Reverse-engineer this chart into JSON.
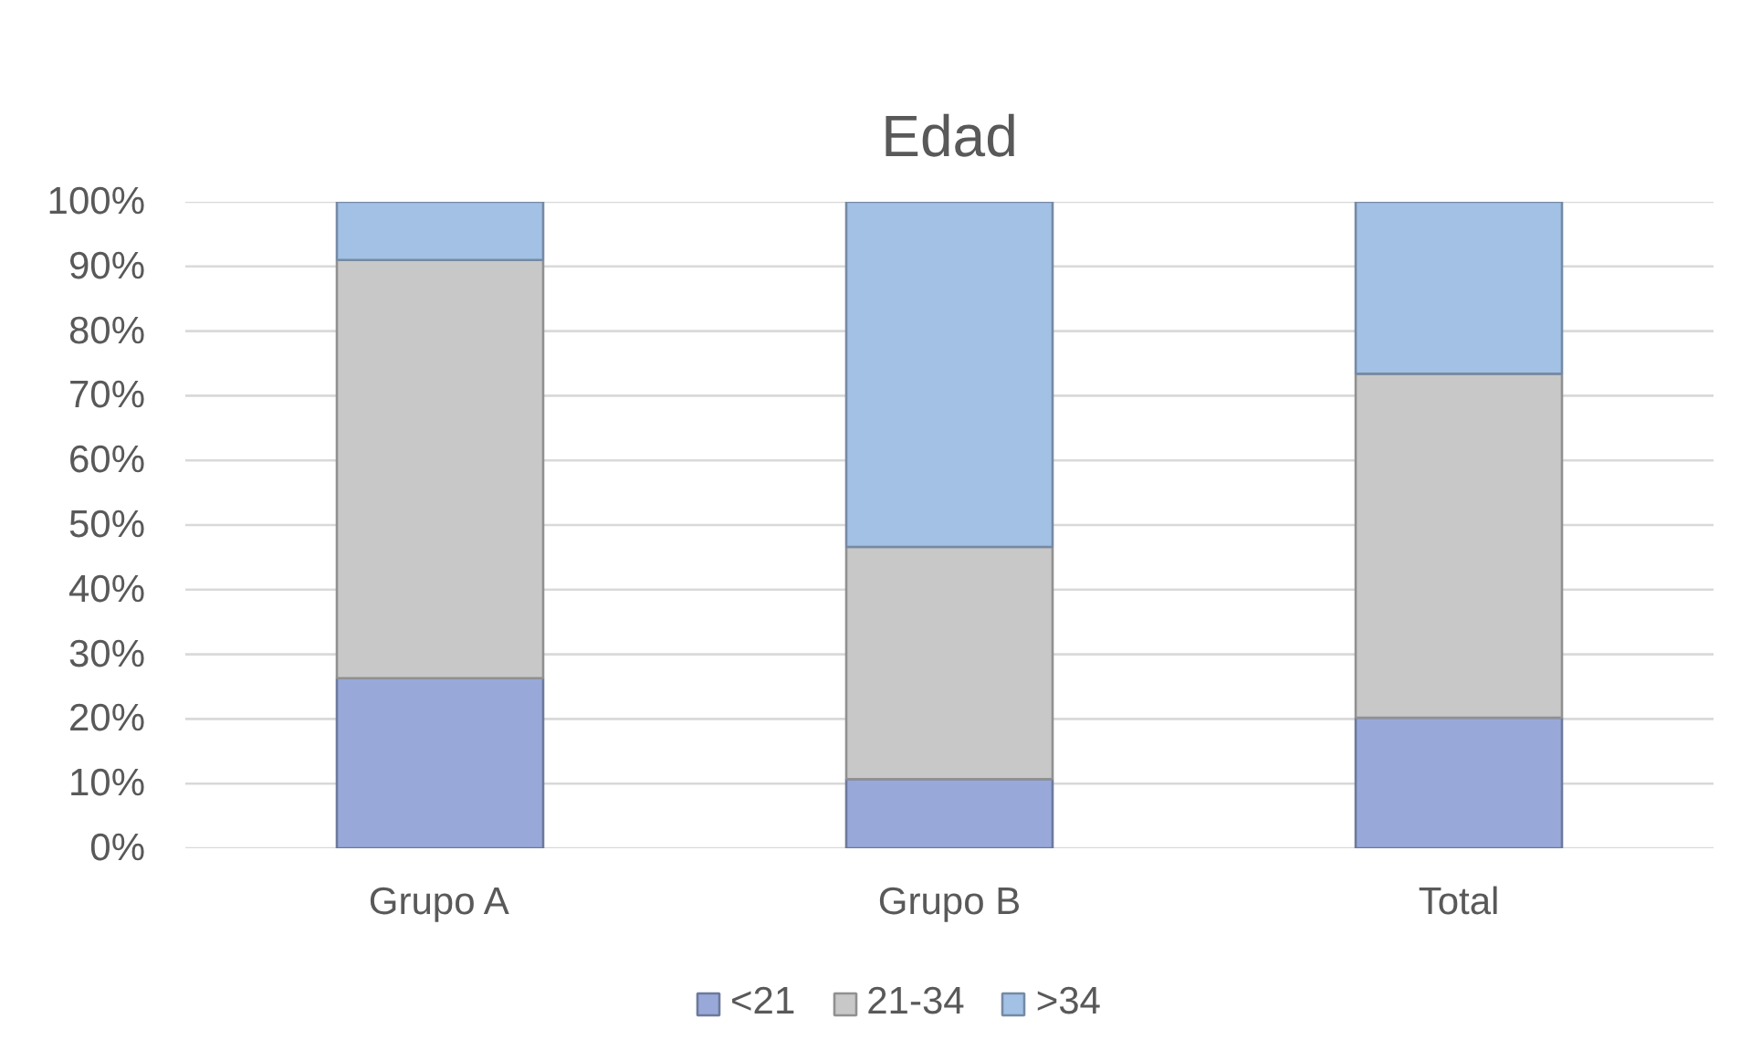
{
  "chart_data": {
    "type": "bar",
    "title": "Edad",
    "categories": [
      "Grupo A",
      "Grupo B",
      "Total"
    ],
    "stacked": true,
    "series": [
      {
        "name": "<21",
        "color": "#98a9d9",
        "values": [
          26.3,
          10.7,
          20.2
        ]
      },
      {
        "name": "21-34",
        "color": "#c8c8c8",
        "values": [
          64.7,
          35.9,
          53.2
        ]
      },
      {
        "name": ">34",
        "color": "#a3c1e5",
        "values": [
          9.0,
          53.4,
          26.6
        ]
      }
    ],
    "ylim": [
      0,
      100
    ],
    "yticks": [
      {
        "value": 0,
        "label": "0%"
      },
      {
        "value": 10,
        "label": "10%"
      },
      {
        "value": 20,
        "label": "20%"
      },
      {
        "value": 30,
        "label": "30%"
      },
      {
        "value": 40,
        "label": "40%"
      },
      {
        "value": 50,
        "label": "50%"
      },
      {
        "value": 60,
        "label": "60%"
      },
      {
        "value": 70,
        "label": "70%"
      },
      {
        "value": 80,
        "label": "80%"
      },
      {
        "value": 90,
        "label": "90%"
      },
      {
        "value": 100,
        "label": "100%"
      }
    ],
    "grid": "y",
    "legend": "bottom"
  }
}
